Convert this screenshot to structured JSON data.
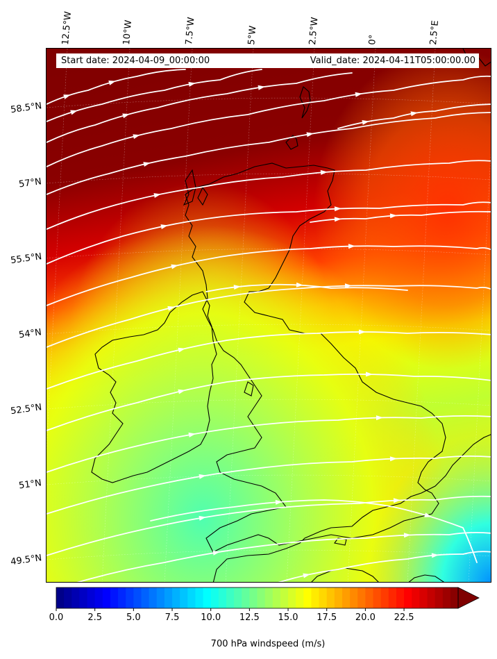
{
  "info": {
    "start_date": "Start date: 2024-04-09_00:00:00",
    "valid_date": "Valid_date: 2024-04-11T05:00:00.00"
  },
  "lon_labels": [
    "12.5°W",
    "10°W",
    "7.5°W",
    "5°W",
    "2.5°W",
    "0°",
    "2.5°E"
  ],
  "lat_labels": [
    "58.5°N",
    "57°N",
    "55.5°N",
    "54°N",
    "52.5°N",
    "51°N",
    "49.5°N"
  ],
  "colorbar": {
    "label": "700 hPa windspeed (m/s)",
    "ticks": [
      "0.0",
      "2.5",
      "5.0",
      "7.5",
      "10.0",
      "12.5",
      "15.0",
      "17.5",
      "20.0",
      "22.5"
    ],
    "min": 0,
    "max": 26,
    "extend": "max"
  },
  "colors": {
    "low": "#00007f",
    "mid": "#7fff7f",
    "high": "#7f0000",
    "streamline": "#ffffff",
    "coastline": "#000000"
  }
}
